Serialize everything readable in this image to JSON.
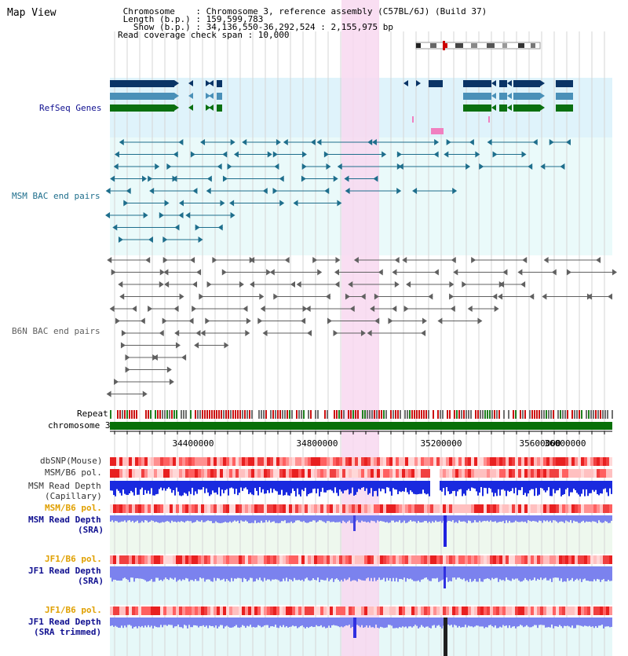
{
  "header": {
    "title": "Map View",
    "chromosome_line": " Chromosome    : Chromosome 3, reference assembly (C57BL/6J) (Build 37)",
    "length_line": " Length (b.p.) : 159,599,783",
    "show_line": "   Show (b.p.) : 34,136,550-36,292,524 : 2,155,975 bp",
    "coverage_line": "Read coverage check span : 10,000"
  },
  "tracks": {
    "refseq": "RefSeq Genes",
    "msm_bac": "MSM BAC end pairs",
    "b6n_bac": "B6N BAC end pairs",
    "repeat": "Repeat",
    "chromosome": "chromosome 3",
    "dbsnp": "dbSNP(Mouse)",
    "msm_b6_pol_1": "MSM/B6 pol.",
    "msm_depth_cap_1": "MSM Read Depth",
    "msm_depth_cap_2": "(Capillary)",
    "msm_b6_pol_2": "MSM/B6 pol.",
    "msm_depth_sra_1": "MSM Read Depth",
    "msm_depth_sra_2": "(SRA)",
    "jf1_b6_pol_1": "JF1/B6 pol.",
    "jf1_depth_sra_1": "JF1 Read Depth",
    "jf1_depth_sra_2": "(SRA)",
    "jf1_b6_pol_2": "JF1/B6 pol.",
    "jf1_depth_trim_1": "JF1 Read Depth",
    "jf1_depth_trim_2": "(SRA trimmed)"
  },
  "axis": {
    "ticks": [
      "34400000",
      "34800000",
      "35200000",
      "35600000",
      "36000000"
    ]
  },
  "colors": {
    "refseq_bg": "#dff3fb",
    "bac_bg": "#eafafa",
    "highlight": "#f8d8f0",
    "gene_dark": "#0a3466",
    "gene_mid": "#4a90b8",
    "gene_green": "#0a7010",
    "msm_pair": "#1e6e8c",
    "b6n_pair": "#606060",
    "chromosome": "#087008",
    "depth_dark": "#1a2adf",
    "depth_light": "#7b82ee",
    "label_navy": "#101090",
    "label_orange": "#e0a000"
  }
}
